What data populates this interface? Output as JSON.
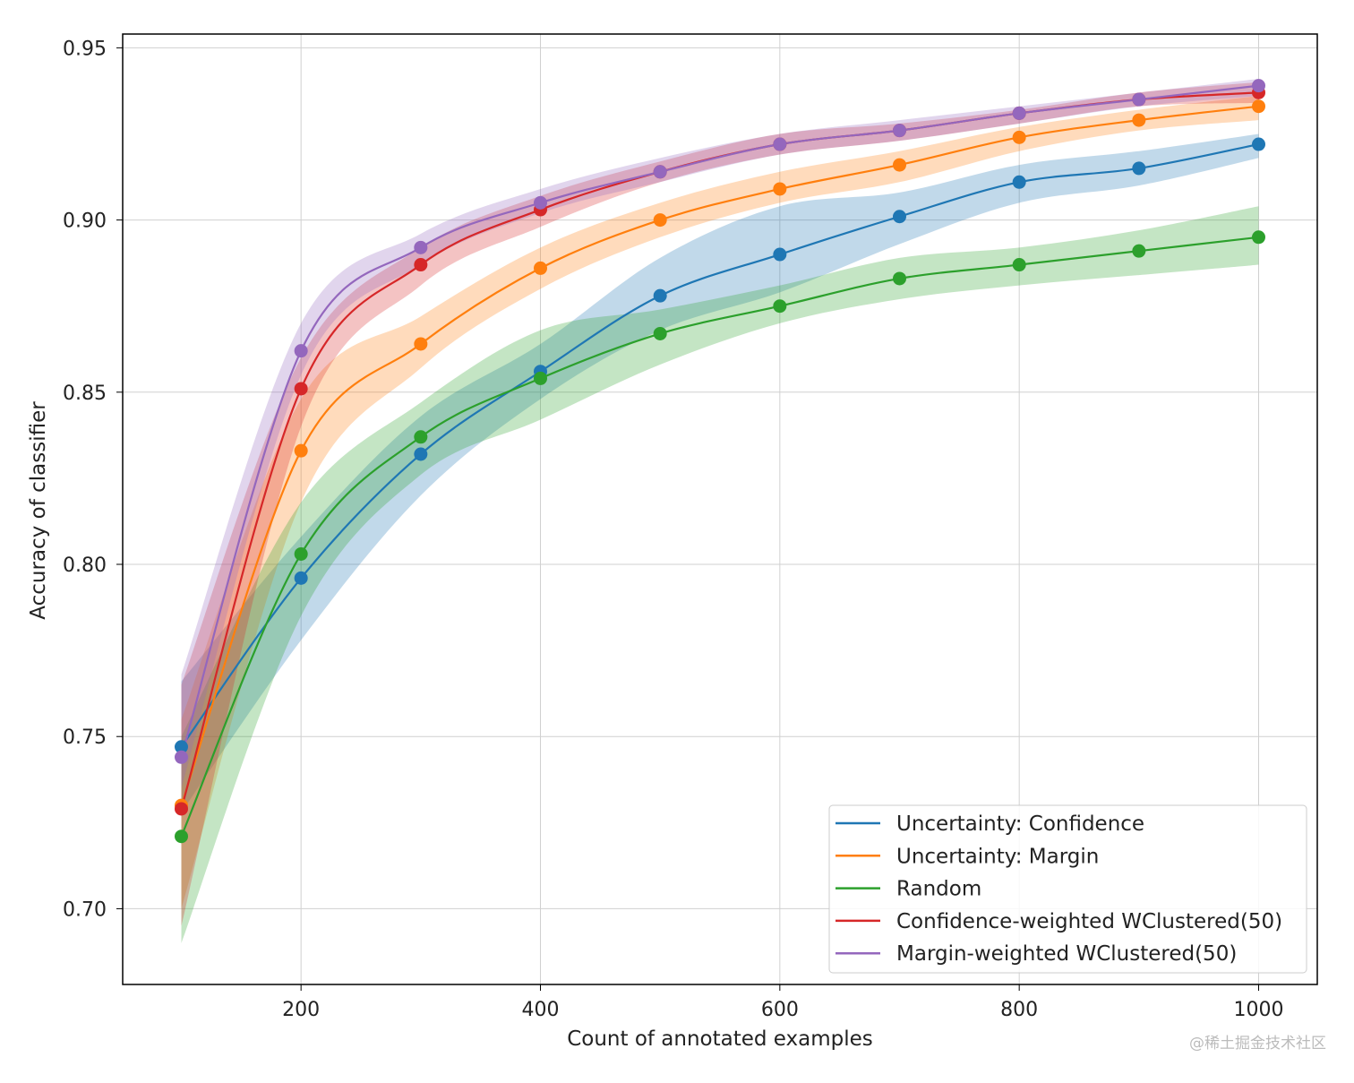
{
  "chart_data": {
    "type": "line",
    "title": "",
    "xlabel": "Count of annotated examples",
    "ylabel": "Accuracy of classifier",
    "xlim": [
      51,
      1049
    ],
    "ylim": [
      0.678,
      0.954
    ],
    "xticks": [
      200,
      400,
      600,
      800,
      1000
    ],
    "xtick_labels": [
      "200",
      "400",
      "600",
      "800",
      "1000"
    ],
    "yticks": [
      0.7,
      0.75,
      0.8,
      0.85,
      0.9,
      0.95
    ],
    "ytick_labels": [
      "0.70",
      "0.75",
      "0.80",
      "0.85",
      "0.90",
      "0.95"
    ],
    "grid": true,
    "legend_position": "bottom-right",
    "x": [
      100,
      200,
      300,
      400,
      500,
      600,
      700,
      800,
      900,
      1000
    ],
    "series": [
      {
        "name": "Uncertainty: Confidence",
        "color": "#1f77b4",
        "values": [
          0.747,
          0.796,
          0.832,
          0.856,
          0.878,
          0.89,
          0.901,
          0.911,
          0.915,
          0.922
        ],
        "lower": [
          0.728,
          0.778,
          0.82,
          0.848,
          0.868,
          0.879,
          0.893,
          0.905,
          0.91,
          0.918
        ],
        "upper": [
          0.766,
          0.808,
          0.843,
          0.864,
          0.889,
          0.904,
          0.908,
          0.916,
          0.92,
          0.925
        ]
      },
      {
        "name": "Uncertainty: Margin",
        "color": "#ff7f0e",
        "values": [
          0.73,
          0.833,
          0.864,
          0.886,
          0.9,
          0.909,
          0.916,
          0.924,
          0.929,
          0.933
        ],
        "lower": [
          0.7,
          0.818,
          0.857,
          0.88,
          0.895,
          0.905,
          0.911,
          0.92,
          0.926,
          0.929
        ],
        "upper": [
          0.755,
          0.848,
          0.872,
          0.892,
          0.905,
          0.914,
          0.92,
          0.927,
          0.932,
          0.936
        ]
      },
      {
        "name": "Random",
        "color": "#2ca02c",
        "values": [
          0.721,
          0.803,
          0.837,
          0.854,
          0.867,
          0.875,
          0.883,
          0.887,
          0.891,
          0.895
        ],
        "lower": [
          0.69,
          0.785,
          0.826,
          0.842,
          0.858,
          0.87,
          0.877,
          0.881,
          0.884,
          0.887
        ],
        "upper": [
          0.75,
          0.818,
          0.847,
          0.868,
          0.874,
          0.881,
          0.889,
          0.892,
          0.897,
          0.904
        ]
      },
      {
        "name": "Confidence-weighted WClustered(50)",
        "color": "#d62728",
        "values": [
          0.729,
          0.851,
          0.887,
          0.903,
          0.914,
          0.922,
          0.926,
          0.931,
          0.935,
          0.937
        ],
        "lower": [
          0.695,
          0.84,
          0.881,
          0.898,
          0.911,
          0.919,
          0.923,
          0.928,
          0.933,
          0.934
        ],
        "upper": [
          0.765,
          0.86,
          0.892,
          0.907,
          0.917,
          0.925,
          0.928,
          0.932,
          0.937,
          0.94
        ]
      },
      {
        "name": "Margin-weighted WClustered(50)",
        "color": "#9467bd",
        "values": [
          0.744,
          0.862,
          0.892,
          0.905,
          0.914,
          0.922,
          0.926,
          0.931,
          0.935,
          0.939
        ],
        "lower": [
          0.735,
          0.855,
          0.887,
          0.902,
          0.911,
          0.919,
          0.923,
          0.928,
          0.933,
          0.936
        ],
        "upper": [
          0.768,
          0.87,
          0.896,
          0.909,
          0.918,
          0.925,
          0.929,
          0.933,
          0.937,
          0.941
        ]
      }
    ]
  },
  "watermark": "@稀土掘金技术社区"
}
